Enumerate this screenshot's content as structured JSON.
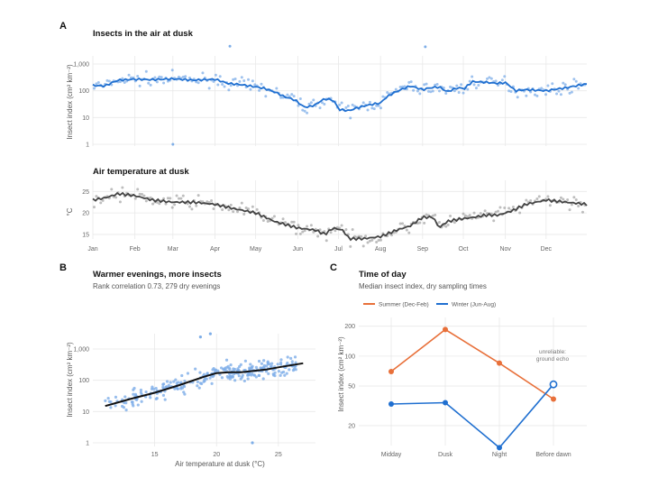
{
  "panels": {
    "a_label": "A",
    "b_label": "B",
    "c_label": "C"
  },
  "colors": {
    "insect_line": "#1f6fd0",
    "insect_points": "#7eaee8",
    "temp_line": "#444444",
    "temp_points": "#a8a8a8",
    "summer": "#e8703a",
    "winter": "#1f6fd0",
    "fit_line": "#111111"
  },
  "chart_data": [
    {
      "type": "line",
      "panel": "A-top",
      "title": "Insects in the air at dusk",
      "ylabel": "Insect index (cm² km⁻²)",
      "yscale": "log",
      "ylim": [
        1,
        1000
      ],
      "yticks": [
        1,
        10,
        100,
        1000
      ],
      "ytick_labels": [
        "1",
        "10",
        "100",
        "1,000"
      ],
      "x_months": [
        "Jan",
        "Feb",
        "Mar",
        "Apr",
        "May",
        "Jun",
        "Jul",
        "Aug",
        "Sep",
        "Oct",
        "Nov",
        "Dec"
      ],
      "smooth_line": {
        "day": [
          1,
          10,
          20,
          32,
          45,
          60,
          75,
          91,
          100,
          110,
          121,
          128,
          135,
          142,
          150,
          156,
          160,
          165,
          172,
          178,
          182,
          190,
          198,
          205,
          213,
          220,
          228,
          235,
          244,
          250,
          256,
          262,
          270,
          275,
          281,
          290,
          298,
          305,
          312,
          320,
          335,
          350,
          365
        ],
        "value": [
          160,
          150,
          250,
          270,
          260,
          280,
          250,
          270,
          190,
          170,
          140,
          120,
          90,
          60,
          45,
          25,
          25,
          30,
          50,
          45,
          20,
          18,
          25,
          30,
          35,
          70,
          110,
          150,
          110,
          130,
          140,
          90,
          130,
          120,
          220,
          210,
          190,
          200,
          100,
          110,
          100,
          130,
          180
        ]
      },
      "outliers": [
        {
          "day": 60,
          "value": 1
        },
        {
          "day": 102,
          "value": 5000
        },
        {
          "day": 246,
          "value": 3500
        }
      ]
    },
    {
      "type": "line",
      "panel": "A-bottom",
      "title": "Air temperature at dusk",
      "ylabel": "°C",
      "ylim": [
        11,
        28
      ],
      "yticks": [
        15,
        20,
        25
      ],
      "x_months": [
        "Jan",
        "Feb",
        "Mar",
        "Apr",
        "May",
        "Jun",
        "Jul",
        "Aug",
        "Sep",
        "Oct",
        "Nov",
        "Dec"
      ],
      "smooth_line": {
        "day": [
          1,
          10,
          20,
          32,
          45,
          60,
          75,
          91,
          105,
          121,
          135,
          152,
          165,
          172,
          178,
          185,
          190,
          200,
          213,
          225,
          235,
          244,
          252,
          256,
          262,
          270,
          282,
          290,
          300,
          310,
          320,
          335,
          350,
          365
        ],
        "value": [
          23,
          23.5,
          24.5,
          24,
          23,
          22.5,
          22.5,
          22,
          21,
          20,
          18,
          16.5,
          16,
          15,
          16.5,
          16,
          14,
          14,
          14.5,
          16,
          17,
          19,
          19,
          16.5,
          18,
          18.5,
          19,
          19.5,
          19.5,
          20.5,
          22,
          23,
          22.5,
          22
        ]
      }
    },
    {
      "type": "scatter",
      "panel": "B",
      "title": "Warmer evenings, more insects",
      "subtitle": "Rank correlation 0.73, 279 dry evenings",
      "xlabel": "Air temperature at dusk (°C)",
      "ylabel": "Insect index (cm² km⁻²)",
      "xlim": [
        10,
        28
      ],
      "xticks": [
        15,
        20,
        25
      ],
      "yscale": "log",
      "ylim": [
        1,
        1000
      ],
      "yticks": [
        1,
        10,
        100,
        1000
      ],
      "ytick_labels": [
        "1",
        "10",
        "100",
        "1,000"
      ],
      "fit_line": {
        "x": [
          11,
          13,
          15,
          17,
          19,
          20,
          21,
          22,
          23,
          24,
          25,
          27
        ],
        "y": [
          15,
          25,
          40,
          70,
          130,
          170,
          180,
          180,
          200,
          220,
          260,
          350
        ]
      },
      "outliers": [
        {
          "x": 18.7,
          "y": 3000
        },
        {
          "x": 19.5,
          "y": 4000
        },
        {
          "x": 22.9,
          "y": 1
        }
      ],
      "n_points": 279
    },
    {
      "type": "line",
      "panel": "C",
      "title": "Time of day",
      "subtitle": "Median insect index, dry sampling times",
      "ylabel": "Insect index (cm² km⁻²)",
      "yscale": "log",
      "ylim": [
        14,
        230
      ],
      "yticks": [
        20,
        50,
        100,
        200
      ],
      "categories": [
        "Midday",
        "Dusk",
        "Night",
        "Before dawn"
      ],
      "series": [
        {
          "name": "Summer (Dec-Feb)",
          "values": [
            70,
            185,
            85,
            37
          ]
        },
        {
          "name": "Winter (Jun-Aug)",
          "values": [
            33,
            34,
            12,
            52
          ]
        }
      ],
      "annotation": {
        "text_line1": "unreliable:",
        "text_line2": "ground echo",
        "category": "Before dawn",
        "series": "Winter (Jun-Aug)"
      },
      "legend_position": "top"
    }
  ]
}
